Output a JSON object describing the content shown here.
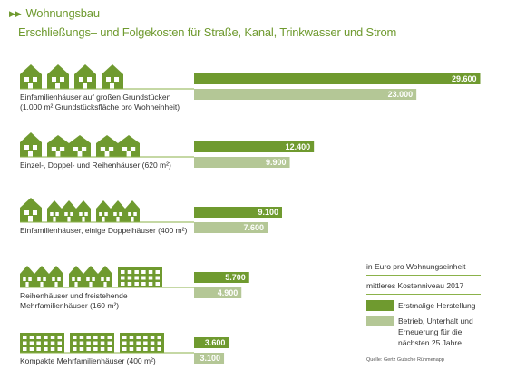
{
  "header": {
    "section": "Wohnungsbau",
    "subtitle": "Erschließungs– und Folgekosten für Straße, Kanal, Trinkwasser und Strom"
  },
  "colors": {
    "dark": "#6f9a2f",
    "light": "#b4c796",
    "line": "#8bb24a",
    "house": "#6f9a2f"
  },
  "chart_data": {
    "type": "bar",
    "orientation": "horizontal",
    "unit": "in Euro pro Wohnungseinheit",
    "categories": [
      "Einfamilienhäuser auf großen Grundstücken (1.000 m² Grundstücksfläche pro Wohneinheit)",
      "Einzel-, Doppel- und Reihenhäuser (620 m²)",
      "Einfamilienhäuser, einige Doppelhäuser (400 m²)",
      "Reihenhäuser und freistehende Mehrfamilienhäuser (160 m²)",
      "Kompakte Mehrfamilienhäuser (400 m²)"
    ],
    "category_lines": [
      [
        "Einfamilienhäuser auf großen Grundstücken",
        "(1.000 m² Grundstücksfläche pro Wohneinheit)"
      ],
      [
        "Einzel-, Doppel- und Reihenhäuser (620 m²)"
      ],
      [
        "Einfamilienhäuser, einige Doppelhäuser (400 m²)"
      ],
      [
        "Reihenhäuser und freistehende",
        "Mehrfamilienhäuser (160 m²)"
      ],
      [
        "Kompakte Mehrfamilienhäuser (400 m²)"
      ]
    ],
    "series": [
      {
        "name": "Erstmalige Herstellung",
        "values": [
          29600,
          12400,
          9100,
          5700,
          3600
        ]
      },
      {
        "name": "Betrieb, Unterhalt und Erneuerung für die nächsten 25 Jahre",
        "values": [
          23000,
          9900,
          7600,
          4900,
          3100
        ]
      }
    ],
    "value_labels": [
      [
        "29.600",
        "23.000"
      ],
      [
        "12.400",
        "9.900"
      ],
      [
        "9.100",
        "7.600"
      ],
      [
        "5.700",
        "4.900"
      ],
      [
        "3.600",
        "3.100"
      ]
    ],
    "house_types": [
      [
        "single",
        "single",
        "single",
        "single"
      ],
      [
        "single",
        "double",
        "double"
      ],
      [
        "single",
        "row",
        "row"
      ],
      [
        "row",
        "row",
        "apartment"
      ],
      [
        "apartment",
        "apartment",
        "apartment"
      ]
    ],
    "xlim": [
      0,
      29600
    ]
  },
  "legend": {
    "title": "in Euro pro Wohnungseinheit",
    "subtitle": "mittleres Kostenniveau 2017",
    "items": [
      {
        "label": "Erstmalige Herstellung"
      },
      {
        "label_lines": [
          "Betrieb, Unterhalt und",
          "Erneuerung für die",
          "nächsten 25 Jahre"
        ]
      }
    ]
  },
  "source": "Quelle: Gertz Gutsche Rühmenapp"
}
